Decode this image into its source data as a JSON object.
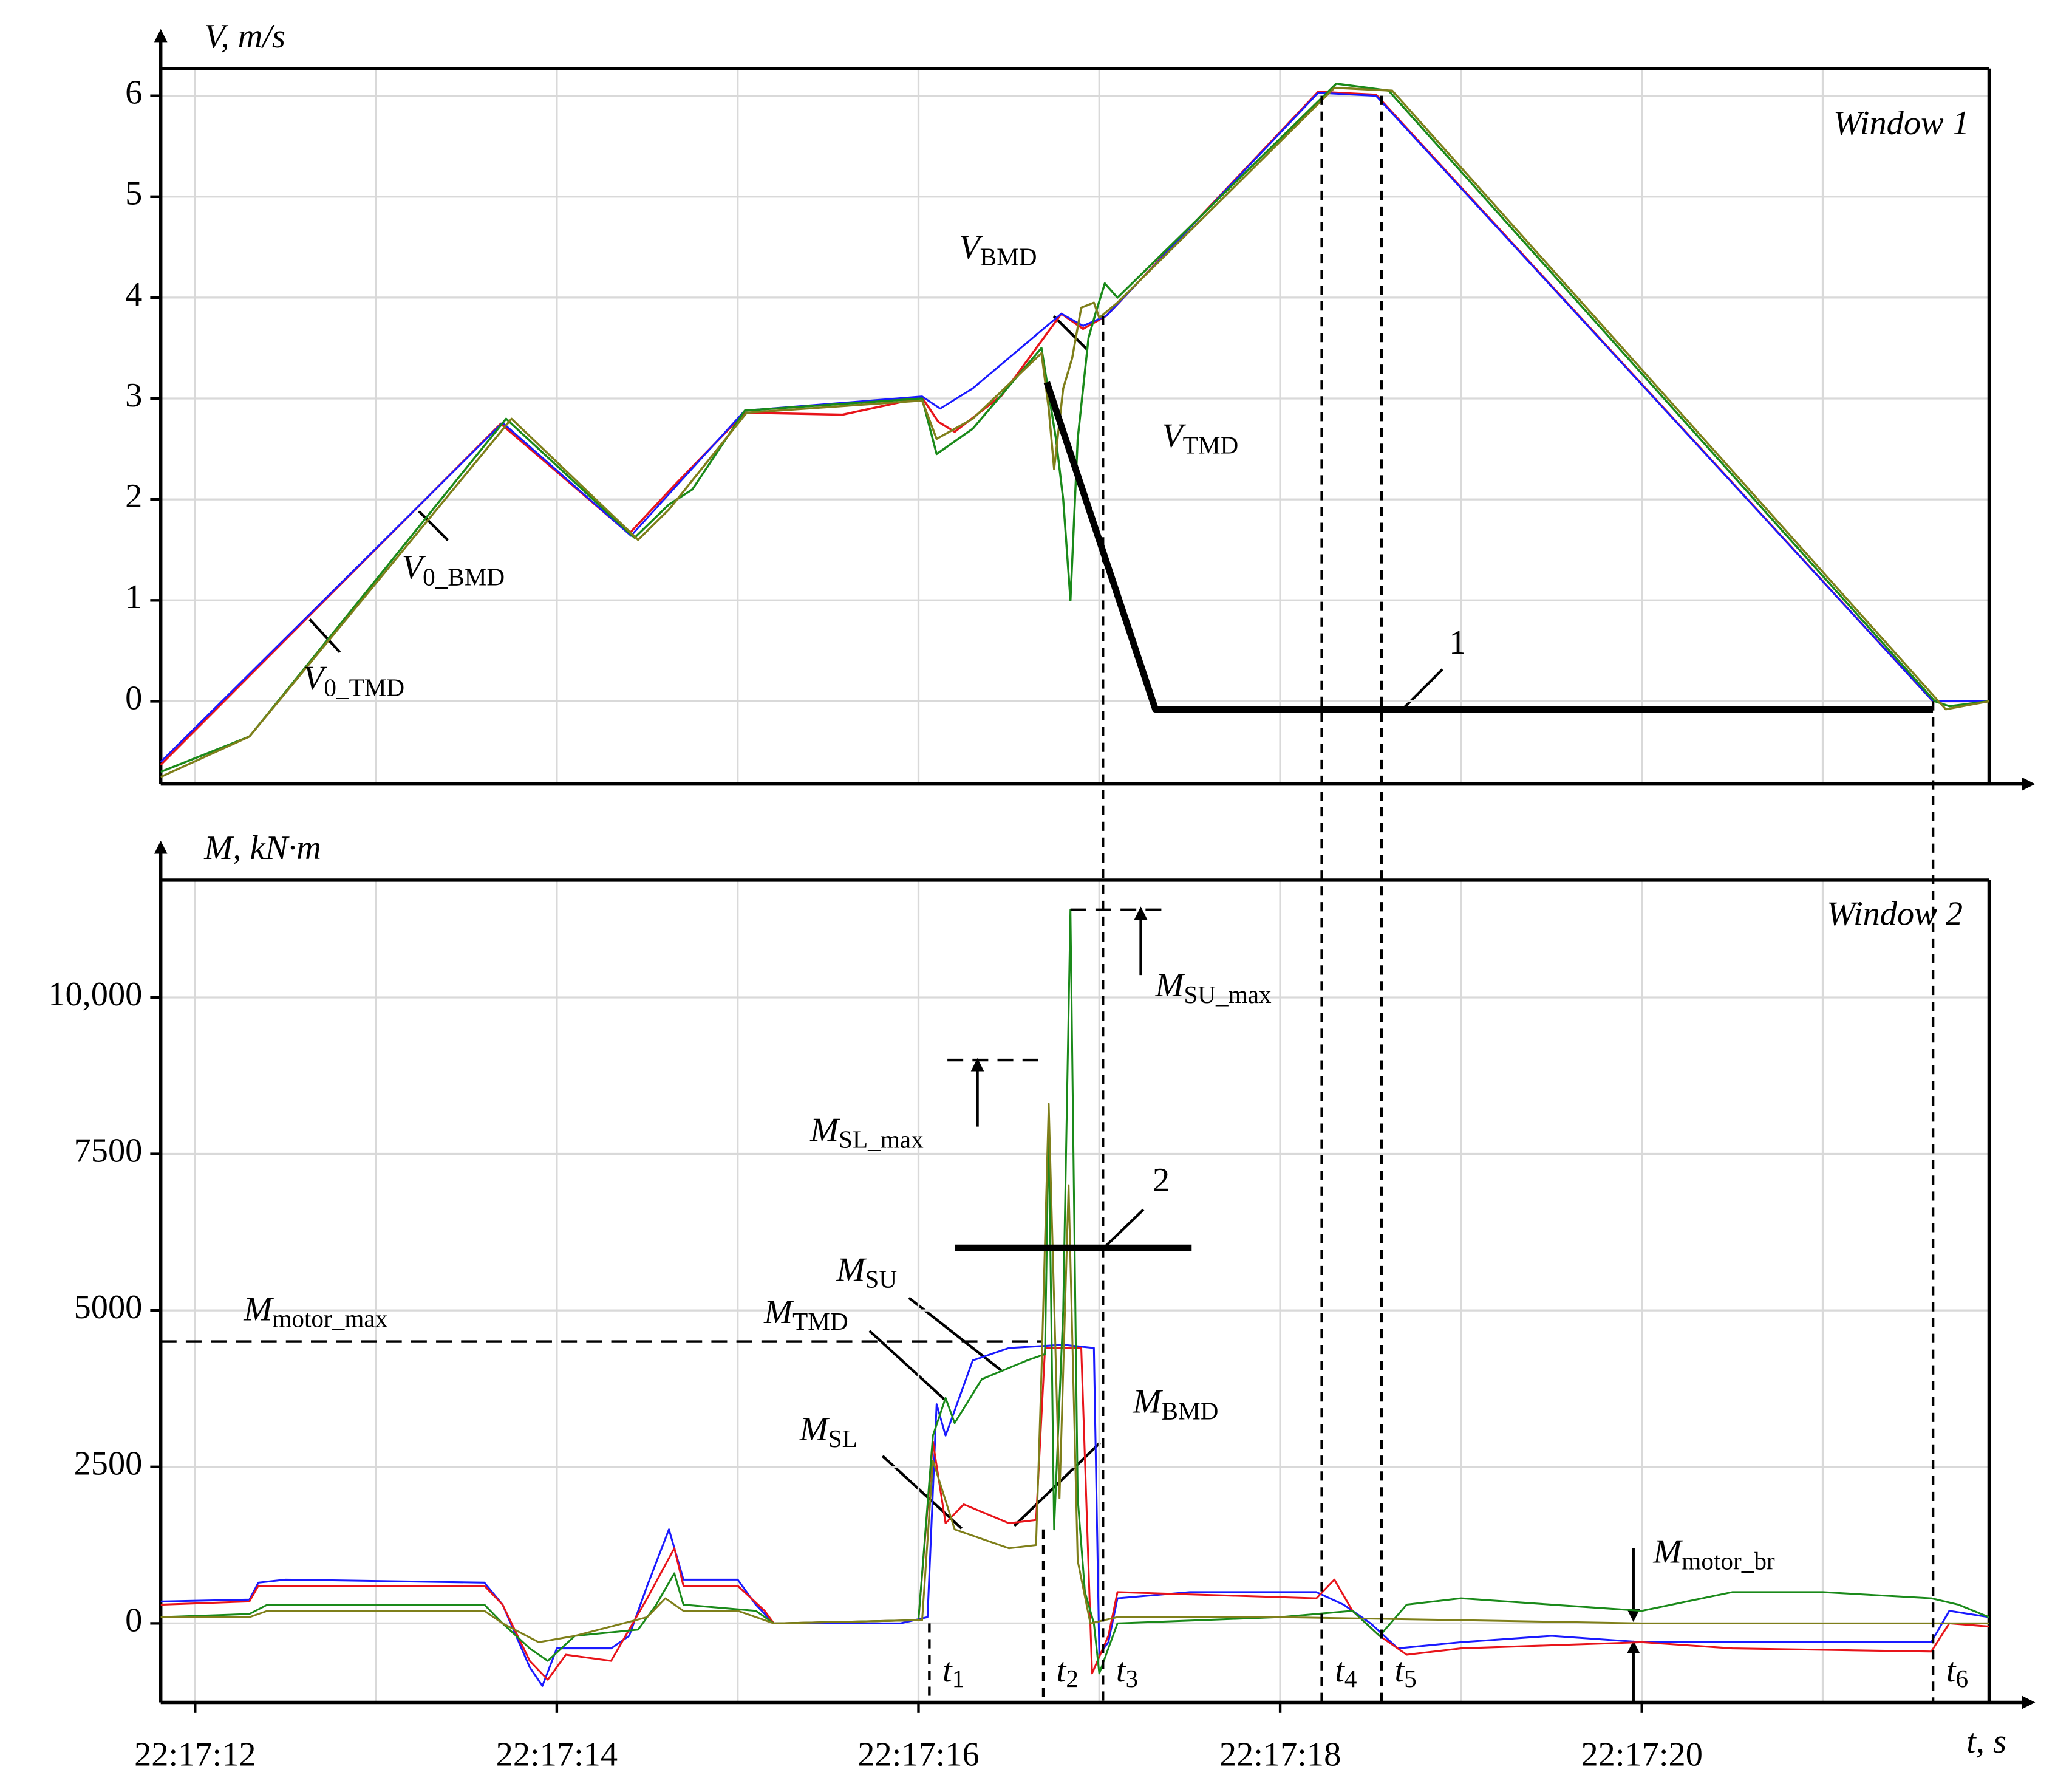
{
  "chart_data": [
    {
      "type": "line",
      "ylabel": "V, m/s",
      "xlim": [
        11.81,
        21.92
      ],
      "ylim": [
        -0.82,
        6.27
      ],
      "yticks": [
        0,
        1,
        2,
        3,
        4,
        5,
        6
      ],
      "xgrid": [
        12,
        13,
        14,
        15,
        16,
        17,
        18,
        19,
        20,
        21
      ],
      "grid": true,
      "series": [
        {
          "color": "#e8141a",
          "width": 1.6,
          "x": [
            11.81,
            13.69,
            14.4,
            14.64,
            15.04,
            15.58,
            16.02,
            16.11,
            16.2,
            16.46,
            16.79,
            16.91,
            17.04,
            18.21,
            18.53,
            21.61,
            21.92
          ],
          "values": [
            -0.63,
            2.75,
            1.66,
            2.12,
            2.86,
            2.84,
            3.01,
            2.77,
            2.67,
            3.03,
            3.84,
            3.69,
            3.82,
            6.04,
            6.01,
            0,
            0
          ]
        },
        {
          "color": "#1a1aff",
          "width": 1.4,
          "x": [
            11.81,
            13.7,
            14.41,
            15.04,
            16.02,
            16.12,
            16.3,
            16.79,
            16.91,
            17.04,
            18.21,
            18.53,
            21.61,
            21.92
          ],
          "values": [
            -0.6,
            2.76,
            1.64,
            2.88,
            3.02,
            2.9,
            3.1,
            3.84,
            3.72,
            3.82,
            6.03,
            6.0,
            0,
            0
          ]
        },
        {
          "color": "#1a8a1a",
          "width": 1.6,
          "x": [
            11.81,
            12.3,
            13.72,
            14.43,
            14.62,
            14.75,
            15.04,
            16.02,
            16.1,
            16.3,
            16.68,
            16.76,
            16.8,
            16.84,
            16.88,
            16.94,
            16.98,
            17.03,
            17.1,
            18.31,
            18.6,
            21.62,
            21.7,
            21.92
          ],
          "values": [
            -0.7,
            -0.35,
            2.8,
            1.62,
            1.95,
            2.1,
            2.88,
            3.0,
            2.45,
            2.7,
            3.5,
            2.6,
            2.0,
            1.0,
            2.6,
            3.6,
            3.85,
            4.14,
            4.0,
            6.12,
            6.05,
            0,
            -0.05,
            0
          ]
        },
        {
          "color": "#7f7f1a",
          "width": 1.6,
          "x": [
            11.81,
            12.3,
            13.75,
            14.45,
            14.62,
            15.05,
            16.02,
            16.1,
            16.3,
            16.68,
            16.72,
            16.75,
            16.8,
            16.85,
            16.9,
            16.97,
            17.0,
            17.1,
            18.3,
            18.62,
            21.63,
            21.68,
            21.92
          ],
          "values": [
            -0.75,
            -0.35,
            2.8,
            1.6,
            1.9,
            2.86,
            2.98,
            2.6,
            2.8,
            3.45,
            2.9,
            2.3,
            3.1,
            3.4,
            3.9,
            3.95,
            3.8,
            3.95,
            6.08,
            6.05,
            0.02,
            -0.08,
            0
          ]
        },
        {
          "color": "#000000",
          "width": 5,
          "x": [
            16.71,
            17.31,
            21.61
          ],
          "values": [
            3.16,
            -0.08,
            -0.08
          ]
        }
      ],
      "annotations": [
        {
          "main": "V",
          "sub": "0_TMD"
        },
        {
          "main": "V",
          "sub": "0_BMD"
        },
        {
          "main": "V",
          "sub": "BMD"
        },
        {
          "main": "V",
          "sub": "TMD"
        },
        {
          "main": "1"
        },
        {
          "main": "Window 1"
        }
      ]
    },
    {
      "type": "line",
      "ylabel": "M, kN·m",
      "xlabel": "t, s",
      "xlim": [
        11.81,
        21.92
      ],
      "ylim": [
        -1263,
        11873
      ],
      "yticks": [
        0,
        2500,
        5000,
        7500,
        {
          "value": 10000,
          "label": "10,000"
        }
      ],
      "xticks": [
        {
          "value": 12,
          "label": "22:17:12"
        },
        {
          "value": 14,
          "label": "22:17:14"
        },
        {
          "value": 16,
          "label": "22:17:16"
        },
        {
          "value": 18,
          "label": "22:17:18"
        },
        {
          "value": 20,
          "label": "22:17:20"
        }
      ],
      "xgrid": [
        12,
        13,
        14,
        15,
        16,
        17,
        18,
        19,
        20,
        21
      ],
      "grid": true,
      "series": [
        {
          "color": "#1a1aff",
          "width": 1.4,
          "x": [
            11.81,
            12.3,
            12.35,
            12.5,
            13.6,
            13.7,
            13.85,
            13.92,
            14.0,
            14.3,
            14.4,
            14.5,
            14.62,
            14.7,
            15.0,
            15.1,
            15.2,
            15.9,
            16.05,
            16.1,
            16.15,
            16.3,
            16.5,
            16.8,
            16.97,
            17.0,
            17.05,
            17.1,
            17.5,
            18.2,
            18.35,
            18.5,
            18.65,
            19.0,
            19.5,
            20.0,
            21.0,
            21.6,
            21.7,
            21.92
          ],
          "values": [
            350,
            380,
            650,
            700,
            650,
            300,
            -700,
            -1000,
            -400,
            -400,
            -200,
            600,
            1500,
            700,
            700,
            300,
            0,
            0,
            100,
            3500,
            3000,
            4200,
            4400,
            4450,
            4400,
            -500,
            -300,
            400,
            500,
            500,
            300,
            0,
            -400,
            -300,
            -200,
            -300,
            -300,
            -300,
            200,
            100
          ]
        },
        {
          "color": "#e8141a",
          "width": 1.4,
          "x": [
            11.81,
            12.3,
            12.35,
            13.6,
            13.7,
            13.85,
            13.95,
            14.05,
            14.3,
            14.5,
            14.65,
            14.7,
            15.0,
            15.15,
            15.2,
            16.0,
            16.08,
            16.15,
            16.25,
            16.5,
            16.65,
            16.7,
            16.9,
            16.96,
            17.05,
            17.1,
            18.2,
            18.3,
            18.4,
            18.55,
            18.7,
            19.0,
            20.0,
            20.5,
            21.6,
            21.7,
            21.92
          ],
          "values": [
            300,
            350,
            600,
            600,
            300,
            -600,
            -900,
            -500,
            -600,
            400,
            1200,
            600,
            600,
            200,
            0,
            50,
            2900,
            1600,
            1900,
            1600,
            1650,
            4400,
            4400,
            -800,
            -200,
            500,
            400,
            700,
            200,
            -200,
            -500,
            -400,
            -300,
            -400,
            -450,
            0,
            -50
          ]
        },
        {
          "color": "#1a8a1a",
          "width": 1.4,
          "x": [
            11.81,
            12.3,
            12.4,
            13.6,
            13.7,
            13.85,
            13.95,
            14.1,
            14.45,
            14.55,
            14.65,
            14.7,
            15.1,
            15.2,
            16.0,
            16.08,
            16.15,
            16.2,
            16.35,
            16.6,
            16.7,
            16.72,
            16.75,
            16.8,
            16.84,
            16.88,
            16.92,
            16.97,
            17.0,
            17.1,
            18.0,
            18.4,
            18.55,
            18.7,
            19.0,
            19.5,
            20.0,
            20.5,
            21.0,
            21.6,
            21.75,
            21.92
          ],
          "values": [
            100,
            150,
            300,
            300,
            0,
            -400,
            -600,
            -200,
            -100,
            300,
            800,
            300,
            200,
            0,
            50,
            3000,
            3600,
            3200,
            3900,
            4200,
            4300,
            8000,
            1500,
            5000,
            11400,
            2000,
            500,
            0,
            -800,
            0,
            100,
            200,
            -200,
            300,
            400,
            300,
            200,
            500,
            500,
            400,
            300,
            100
          ]
        },
        {
          "color": "#7f7f1a",
          "width": 1.4,
          "x": [
            11.81,
            12.3,
            12.4,
            13.6,
            13.7,
            13.9,
            14.1,
            14.5,
            14.6,
            14.7,
            15.0,
            15.2,
            16.02,
            16.08,
            16.2,
            16.5,
            16.65,
            16.68,
            16.72,
            16.78,
            16.83,
            16.88,
            16.95,
            17.1,
            18.0,
            19.0,
            20.0,
            21.0,
            21.6,
            21.92
          ],
          "values": [
            100,
            100,
            200,
            200,
            0,
            -300,
            -200,
            100,
            400,
            200,
            200,
            0,
            50,
            2600,
            1500,
            1200,
            1250,
            4000,
            8300,
            2000,
            7000,
            1000,
            0,
            100,
            100,
            50,
            0,
            0,
            0,
            0
          ]
        },
        {
          "color": "#000000",
          "width": 5,
          "x": [
            16.2,
            17.51
          ],
          "values": [
            6000,
            6000
          ]
        },
        {
          "color": "#000000",
          "width": 2,
          "dash": true,
          "x": [
            11.81,
            16.68
          ],
          "values": [
            4500,
            4500
          ]
        },
        {
          "color": "#000000",
          "width": 2,
          "dash": true,
          "x": [
            16.16,
            16.68
          ],
          "values": [
            9000,
            9000
          ]
        },
        {
          "color": "#000000",
          "width": 2,
          "dash": true,
          "x": [
            16.84,
            17.37
          ],
          "values": [
            11400,
            11400
          ]
        }
      ],
      "markers": [
        {
          "label": "t",
          "sub": "1",
          "x": 16.06,
          "from": 0
        },
        {
          "label": "t",
          "sub": "2",
          "x": 16.69,
          "from": 1500
        },
        {
          "label": "t",
          "sub": "3",
          "x": 17.02,
          "from_top_chart": 3.82
        },
        {
          "label": "t",
          "sub": "4",
          "x": 18.23,
          "from_top_chart": 6.0
        },
        {
          "label": "t",
          "sub": "5",
          "x": 18.56,
          "from_top_chart": 6.0
        },
        {
          "label": "t",
          "sub": "6",
          "x": 21.61,
          "from_top_chart": 0
        }
      ],
      "annotations": [
        {
          "main": "M",
          "sub": "motor_max"
        },
        {
          "main": "M",
          "sub": "SL_max"
        },
        {
          "main": "M",
          "sub": "SU_max"
        },
        {
          "main": "M",
          "sub": "SU"
        },
        {
          "main": "M",
          "sub": "TMD"
        },
        {
          "main": "M",
          "sub": "SL"
        },
        {
          "main": "M",
          "sub": "BMD"
        },
        {
          "main": "M",
          "sub": "motor_br"
        },
        {
          "main": "2"
        },
        {
          "main": "Window 2"
        }
      ]
    }
  ]
}
